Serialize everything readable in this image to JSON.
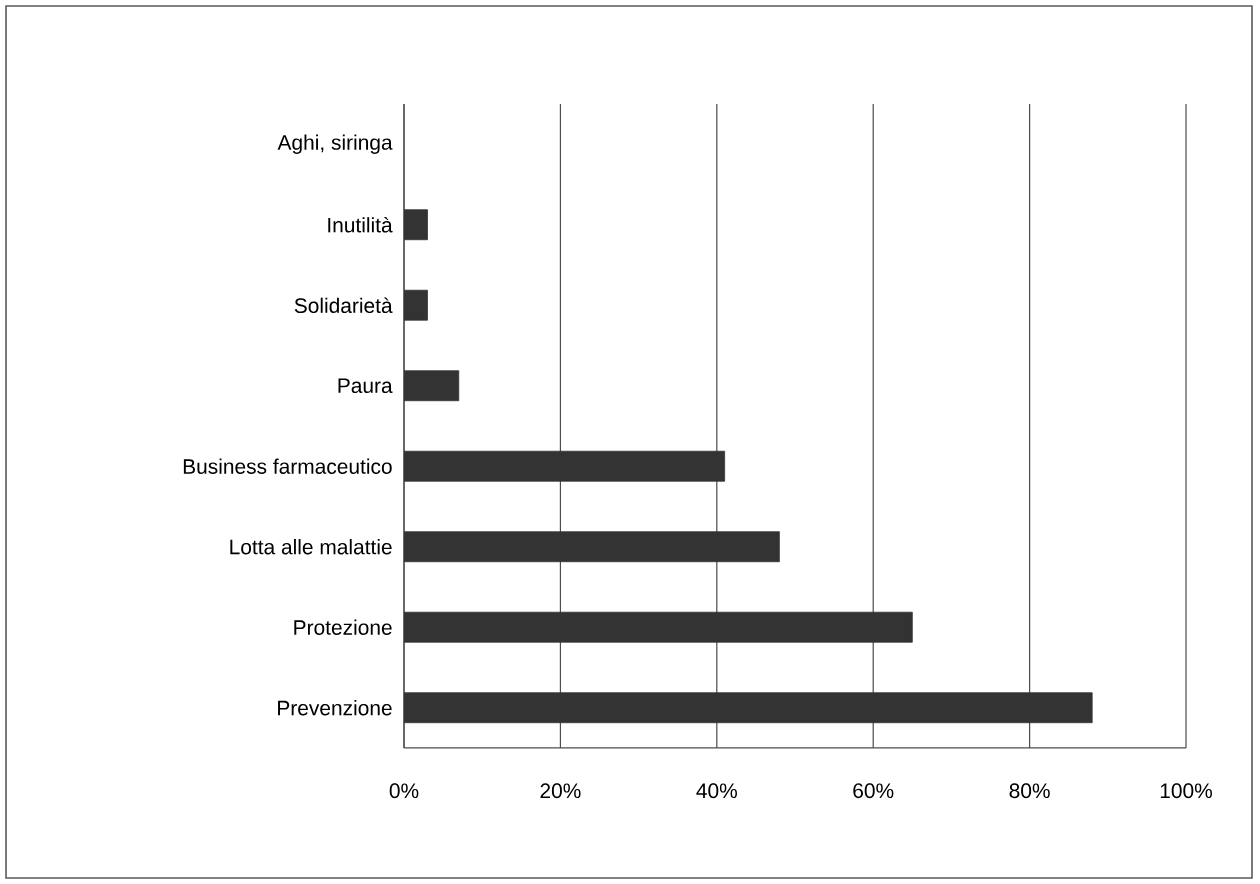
{
  "chart_data": {
    "type": "bar",
    "orientation": "horizontal",
    "categories": [
      "Aghi, siringa",
      "Inutilità",
      "Solidarietà",
      "Paura",
      "Business farmaceutico",
      "Lotta alle malattie",
      "Protezione",
      "Prevenzione"
    ],
    "values": [
      null,
      3,
      3,
      7,
      41,
      48,
      65,
      88
    ],
    "color": "#333333",
    "xlim": [
      0,
      100
    ],
    "xticks": [
      {
        "value": 0,
        "label": "0%"
      },
      {
        "value": 20,
        "label": "20%"
      },
      {
        "value": 40,
        "label": "40%"
      },
      {
        "value": 60,
        "label": "60%"
      },
      {
        "value": 80,
        "label": "80%"
      },
      {
        "value": 100,
        "label": "100%"
      }
    ],
    "grid": "x"
  }
}
